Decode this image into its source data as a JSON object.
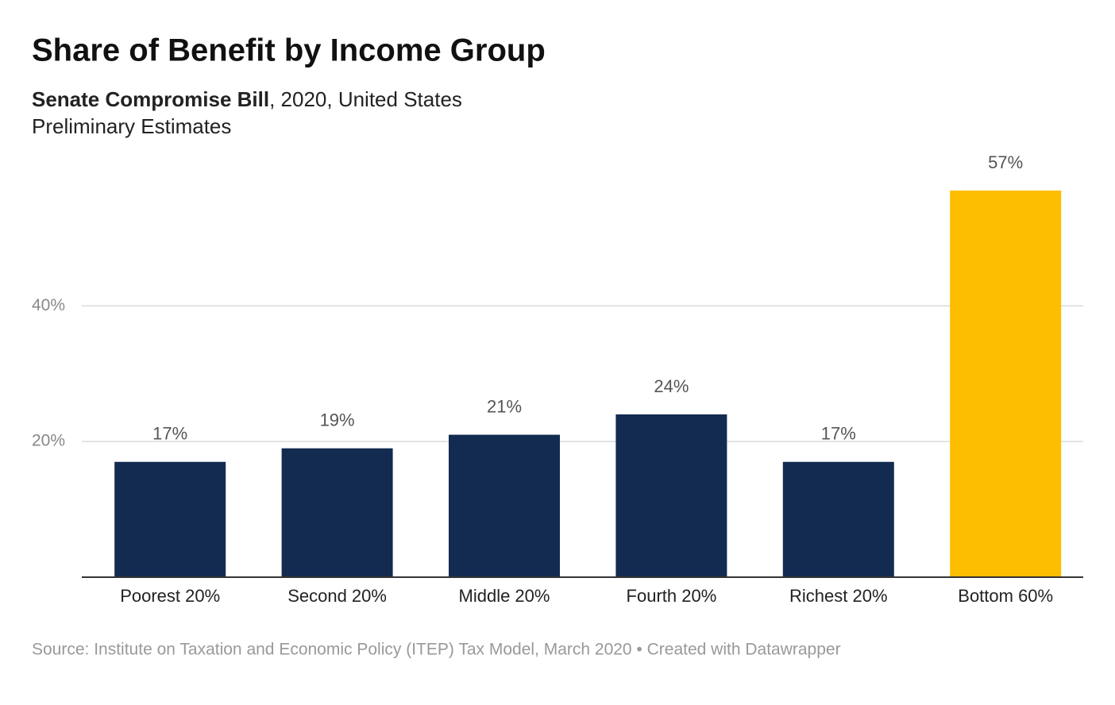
{
  "chart_data": {
    "type": "bar",
    "title": "Share of Benefit by Income Group",
    "subtitle": {
      "bold": "Senate Compromise Bill",
      "rest": ", 2020, United States",
      "line2": "Preliminary Estimates"
    },
    "categories": [
      "Poorest 20%",
      "Second 20%",
      "Middle 20%",
      "Fourth 20%",
      "Richest 20%",
      "Bottom 60%"
    ],
    "values": [
      17,
      19,
      21,
      24,
      17,
      57
    ],
    "value_labels": [
      "17%",
      "19%",
      "21%",
      "24%",
      "17%",
      "57%"
    ],
    "colors": [
      "#132b50",
      "#132b50",
      "#132b50",
      "#132b50",
      "#132b50",
      "#fdbd00"
    ],
    "ylim": [
      0,
      57
    ],
    "yticks": [
      {
        "value": 20,
        "label": "20%"
      },
      {
        "value": 40,
        "label": "40%"
      }
    ],
    "grid": true,
    "source": "Source: Institute on Taxation and Economic Policy (ITEP) Tax Model, March 2020 • Created with Datawrapper"
  }
}
